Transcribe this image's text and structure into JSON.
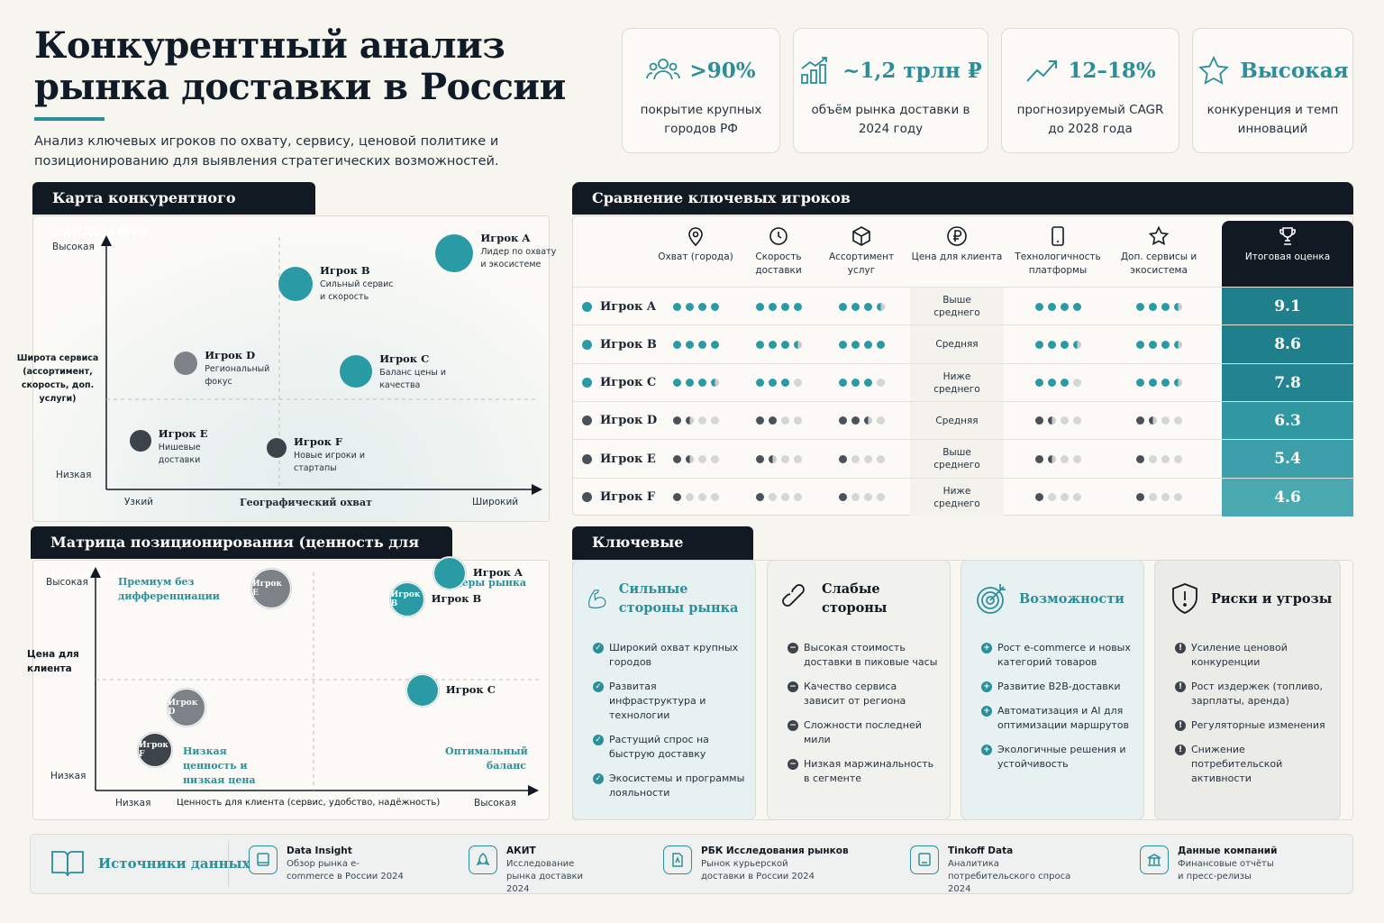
{
  "header": {
    "title": "Конкурентный анализ рынка доставки в России",
    "subtitle": "Анализ ключевых игроков по охвату, сервису, ценовой политике и позиционированию для выявления стратегических возможностей."
  },
  "kpis": [
    {
      "value": ">90%",
      "label": "покрытие крупных городов РФ",
      "icon": "people-icon"
    },
    {
      "value": "~1,2 трлн ₽",
      "label": "объём рынка доставки в 2024 году",
      "icon": "bar-growth-icon"
    },
    {
      "value": "12–18%",
      "label": "прогнозируемый CAGR до 2028 года",
      "icon": "trend-up-icon"
    },
    {
      "value": "Высокая",
      "label": "конкуренция и темп инноваций",
      "icon": "star-icon"
    }
  ],
  "landscape": {
    "title": "Карта конкурентного ландшафта",
    "y_axis": {
      "label": "Широта сервиса (ассортимент, скорость, доп. услуги)",
      "high": "Высокая",
      "low": "Низкая"
    },
    "x_axis": {
      "label": "Географический охват",
      "low": "Узкий",
      "high": "Широкий"
    },
    "players": [
      {
        "name": "Игрок A",
        "desc": "Лидер по охвату и экосистеме",
        "coverage": 0.92,
        "breadth": 0.9,
        "color": "#2a9aa4"
      },
      {
        "name": "Игрок B",
        "desc": "Сильный сервис и скорость",
        "coverage": 0.5,
        "breadth": 0.78,
        "color": "#2a9aa4"
      },
      {
        "name": "Игрок C",
        "desc": "Баланс цены и качества",
        "coverage": 0.66,
        "breadth": 0.44,
        "color": "#2a9aa4"
      },
      {
        "name": "Игрок D",
        "desc": "Региональный фокус",
        "coverage": 0.21,
        "breadth": 0.47,
        "color": "#7d8288"
      },
      {
        "name": "Игрок E",
        "desc": "Нишевые доставки",
        "coverage": 0.09,
        "breadth": 0.17,
        "color": "#3c434a"
      },
      {
        "name": "Игрок F",
        "desc": "Новые игроки и стартапы",
        "coverage": 0.45,
        "breadth": 0.14,
        "color": "#3c434a"
      }
    ]
  },
  "matrix": {
    "title": "Матрица позиционирования (ценность для клиента)",
    "y_axis": {
      "label": "Цена для клиента",
      "high": "Высокая",
      "low": "Низкая"
    },
    "x_axis": {
      "label": "Ценность для клиента (сервис, удобство, надёжность)",
      "low": "Низкая",
      "high": "Высокая"
    },
    "quadrants": {
      "top_left": "Премиум без дифференциации",
      "top_right": "Лидеры рынка",
      "bottom_left": "Низкая ценность и низкая цена",
      "bottom_right": "Оптимальный баланс"
    },
    "players": [
      {
        "name": "Игрок E",
        "value": 0.37,
        "price": 0.8,
        "color": "#7d8288",
        "label_inside": true
      },
      {
        "name": "Игрок A",
        "value": 0.83,
        "price": 0.87,
        "color": "#2a9aa4",
        "label_inside": false
      },
      {
        "name": "Игрок B",
        "value": 0.72,
        "price": 0.75,
        "color": "#2a9aa4",
        "label_inside": true
      },
      {
        "name": "Игрок C",
        "value": 0.76,
        "price": 0.34,
        "color": "#2a9aa4",
        "label_inside": false
      },
      {
        "name": "Игрок D",
        "value": 0.15,
        "price": 0.26,
        "color": "#7d8288",
        "label_inside": true
      },
      {
        "name": "Игрок F",
        "value": 0.07,
        "price": 0.07,
        "color": "#3c434a",
        "label_inside": true
      }
    ]
  },
  "comparison": {
    "title": "Сравнение ключевых игроков",
    "columns": [
      {
        "label": "Охват (города)",
        "icon": "location-pin-icon"
      },
      {
        "label": "Скорость доставки",
        "icon": "clock-icon"
      },
      {
        "label": "Ассортимент услуг",
        "icon": "box-icon"
      },
      {
        "label": "Цена для клиента",
        "icon": "ruble-icon"
      },
      {
        "label": "Технологичность платформы",
        "icon": "phone-icon"
      },
      {
        "label": "Доп. сервисы и экосистема",
        "icon": "star-outline-icon"
      },
      {
        "label": "Итоговая оценка",
        "icon": "trophy-icon"
      }
    ],
    "rows": [
      {
        "name": "Игрок A",
        "color": "#2a9aa4",
        "ratings": [
          4,
          4,
          3.5
        ],
        "price": "Выше среднего",
        "ratings2": [
          4,
          3.5
        ],
        "score": "9.1",
        "score_color": "#1f7f8a"
      },
      {
        "name": "Игрок B",
        "color": "#2a9aa4",
        "ratings": [
          4,
          3.5,
          4
        ],
        "price": "Средняя",
        "ratings2": [
          3.5,
          3.5
        ],
        "score": "8.6",
        "score_color": "#1f7f8a"
      },
      {
        "name": "Игрок C",
        "color": "#2a9aa4",
        "ratings": [
          3.5,
          3,
          3
        ],
        "price": "Ниже среднего",
        "ratings2": [
          3,
          3.5
        ],
        "score": "7.8",
        "score_color": "#23838e"
      },
      {
        "name": "Игрок D",
        "color": "#4a5158",
        "ratings": [
          1.5,
          2,
          2.5
        ],
        "price": "Средняя",
        "ratings2": [
          1.5,
          1.5
        ],
        "score": "6.3",
        "score_color": "#3197a1"
      },
      {
        "name": "Игрок E",
        "color": "#4a5158",
        "ratings": [
          1.5,
          1.5,
          1
        ],
        "price": "Выше среднего",
        "ratings2": [
          1.5,
          1
        ],
        "score": "5.4",
        "score_color": "#3d9fa9"
      },
      {
        "name": "Игрок F",
        "color": "#4a5158",
        "ratings": [
          1,
          1,
          1
        ],
        "price": "Ниже среднего",
        "ratings2": [
          1,
          1
        ],
        "score": "4.6",
        "score_color": "#4aa8b1"
      }
    ]
  },
  "insights": {
    "title": "Ключевые инсайты",
    "cards": [
      {
        "title": "Сильные стороны рынка",
        "icon": "biceps-icon",
        "bg": "#e8f1f1",
        "title_color": "#2a8f9a",
        "bullet": "#2a8f9a",
        "mark": "✓",
        "items": [
          "Широкий охват крупных городов",
          "Развитая инфраструктура и технологии",
          "Растущий спрос на быструю доставку",
          "Экосистемы и программы лояльности"
        ]
      },
      {
        "title": "Слабые стороны",
        "icon": "broken-link-icon",
        "bg": "#f1f1ee",
        "title_color": "#111a23",
        "bullet": "#3c434a",
        "mark": "−",
        "items": [
          "Высокая стоимость доставки в пиковые часы",
          "Качество сервиса зависит от региона",
          "Сложности последней мили",
          "Низкая маржинальность в сегменте"
        ]
      },
      {
        "title": "Возможности",
        "icon": "target-icon",
        "bg": "#e8f1f1",
        "title_color": "#2a8f9a",
        "bullet": "#2a8f9a",
        "mark": "+",
        "items": [
          "Рост e-commerce и новых категорий товаров",
          "Развитие B2B-доставки",
          "Автоматизация и AI для оптимизации маршрутов",
          "Экологичные решения и устойчивость"
        ]
      },
      {
        "title": "Риски и угрозы",
        "icon": "shield-alert-icon",
        "bg": "#ebebe8",
        "title_color": "#111a23",
        "bullet": "#3c434a",
        "mark": "!",
        "items": [
          "Усиление ценовой конкуренции",
          "Рост издержек (топливо, зарплаты, аренда)",
          "Регуляторные изменения",
          "Снижение потребительской активности"
        ]
      }
    ]
  },
  "sources": {
    "title": "Источники данных",
    "items": [
      {
        "name": "Data Insight",
        "desc": "Обзор рынка e-commerce в России 2024"
      },
      {
        "name": "АКИТ",
        "desc": "Исследование рынка доставки 2024"
      },
      {
        "name": "РБК Исследования рынков",
        "desc": "Рынок курьерской доставки в России 2024"
      },
      {
        "name": "Tinkoff Data",
        "desc": "Аналитика потребительского спроса 2024"
      },
      {
        "name": "Данные компаний",
        "desc": "Финансовые отчёты и пресс-релизы"
      }
    ]
  }
}
